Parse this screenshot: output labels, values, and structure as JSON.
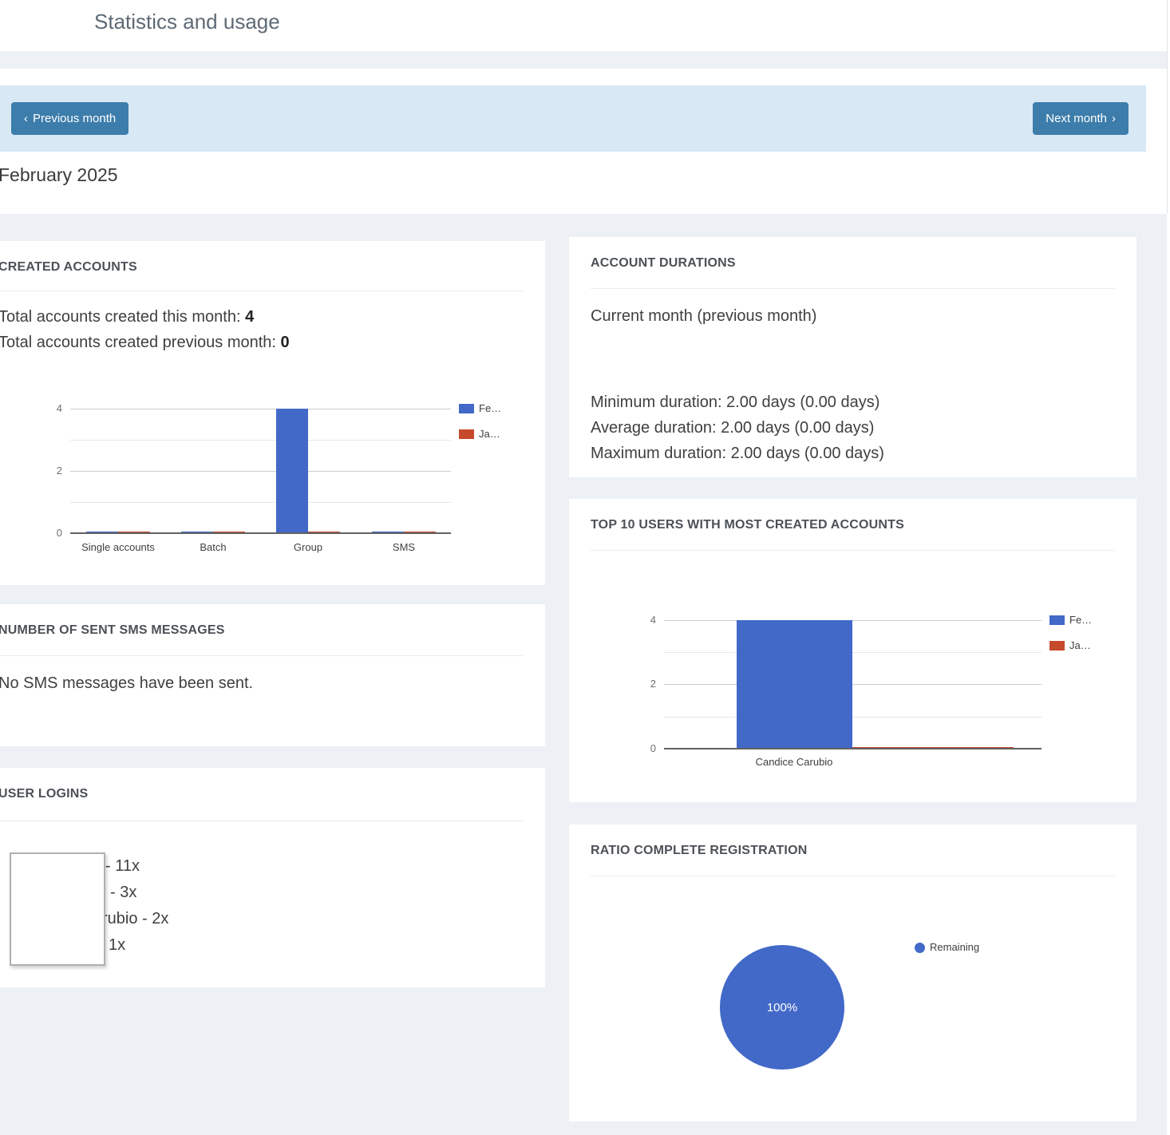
{
  "page": {
    "title": "Statistics and usage"
  },
  "toolbar": {
    "previous_chevron": "‹",
    "previous_label": "Previous month",
    "next_label": "Next month",
    "next_chevron": "›",
    "month_label": "February 2025"
  },
  "colors": {
    "button_blue": "#3d7dab",
    "toolbar_bg": "#d9e8f5",
    "section_bg": "#edf1f6",
    "chart_blue": "#4269c8",
    "chart_red": "#c7492b"
  },
  "panels": {
    "created_accounts": {
      "title": "CREATED ACCOUNTS",
      "total_this_month_label": "Total accounts created this month: ",
      "total_this_month_value": "4",
      "total_previous_month_label": "Total accounts created previous month: ",
      "total_previous_month_value": "0"
    },
    "sms_messages": {
      "title": "NUMBER OF SENT SMS MESSAGES",
      "empty_message": "No SMS messages have been sent."
    },
    "user_logins": {
      "title": "USER LOGINS",
      "items": [
        "- 11x",
        "- 3x",
        "rubio - 2x",
        "1x"
      ]
    },
    "account_durations": {
      "title": "ACCOUNT DURATIONS",
      "subtitle": "Current month (previous month)",
      "minimum": "Minimum duration: 2.00 days (0.00 days)",
      "average": "Average duration: 2.00 days (0.00 days)",
      "maximum": "Maximum duration: 2.00 days (0.00 days)"
    },
    "top_users": {
      "title": "TOP 10 USERS WITH MOST CREATED ACCOUNTS"
    },
    "ratio_registration": {
      "title": "RATIO COMPLETE REGISTRATION"
    }
  },
  "chart_data": [
    {
      "id": "created-accounts-by-type",
      "type": "bar",
      "categories": [
        "Single accounts",
        "Batch",
        "Group",
        "SMS"
      ],
      "series": [
        {
          "name": "Fe…",
          "color": "#4269c8",
          "values": [
            0,
            0,
            4,
            0
          ]
        },
        {
          "name": "Ja…",
          "color": "#c7492b",
          "values": [
            0,
            0,
            0,
            0
          ]
        }
      ],
      "yticks": [
        "0",
        "2",
        "4"
      ],
      "ylim": [
        0,
        4
      ],
      "grid": true,
      "legend_position": "right"
    },
    {
      "id": "top-users-created-accounts",
      "type": "bar",
      "categories": [
        "Candice Carubio"
      ],
      "series": [
        {
          "name": "Fe…",
          "color": "#4269c8",
          "values": [
            4
          ]
        },
        {
          "name": "Ja…",
          "color": "#c7492b",
          "values": [
            0
          ]
        }
      ],
      "yticks": [
        "0",
        "2",
        "4"
      ],
      "ylim": [
        0,
        4
      ],
      "grid": true,
      "legend_position": "right"
    },
    {
      "id": "ratio-complete-registration",
      "type": "pie",
      "slices": [
        {
          "label": "Remaining",
          "value": 100,
          "display_label": "100%",
          "color": "#4269c8"
        }
      ],
      "legend_position": "right"
    }
  ]
}
